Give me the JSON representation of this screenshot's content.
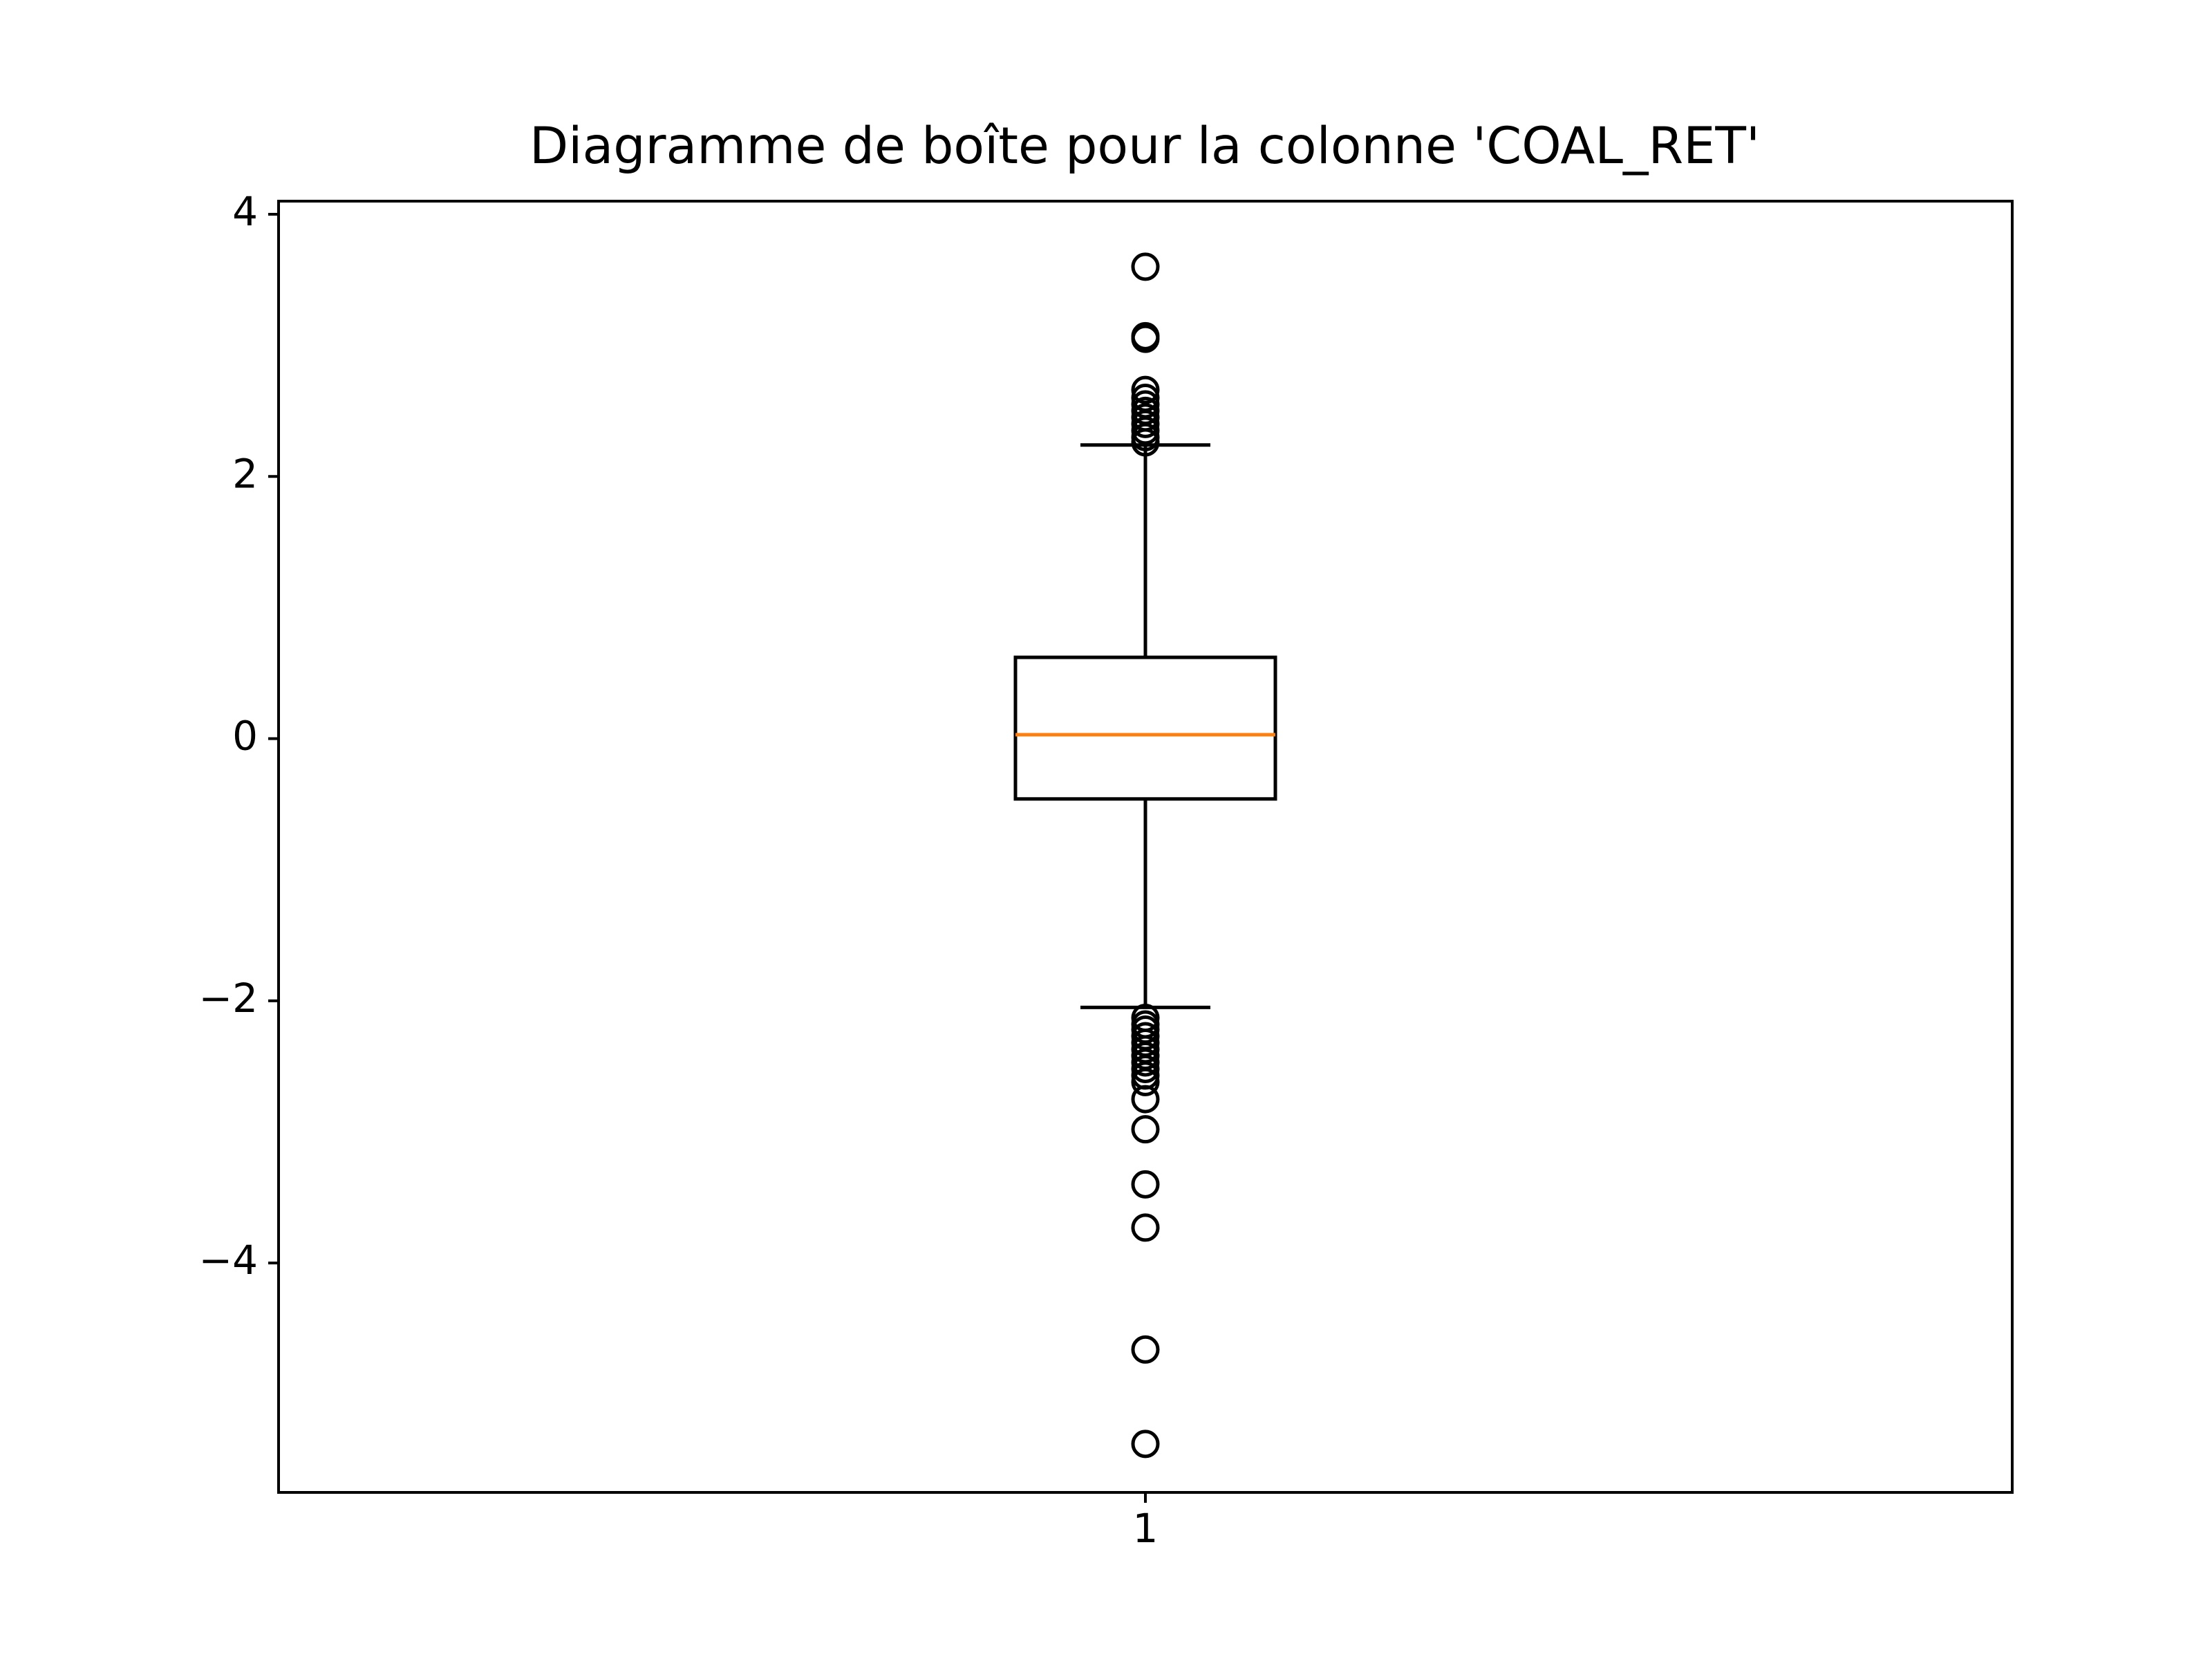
{
  "chart_data": {
    "type": "box",
    "title": "Diagramme de boîte pour la colonne 'COAL_RET'",
    "xlabel": "",
    "ylabel": "",
    "categories": [
      "1"
    ],
    "ylim": [
      -5.75,
      4.1
    ],
    "yticks": [
      {
        "value": 4,
        "label": "4"
      },
      {
        "value": 2,
        "label": "2"
      },
      {
        "value": 0,
        "label": "0"
      },
      {
        "value": -2,
        "label": "−2"
      },
      {
        "value": -4,
        "label": "−4"
      }
    ],
    "grid": false,
    "box": {
      "q1": -0.46,
      "median": 0.03,
      "q3": 0.62,
      "whisker_low": -2.05,
      "whisker_high": 2.24
    },
    "outliers": [
      3.6,
      3.07,
      3.05,
      2.66,
      2.6,
      2.55,
      2.5,
      2.45,
      2.4,
      2.35,
      2.3,
      2.26,
      -2.13,
      -2.18,
      -2.22,
      -2.27,
      -2.32,
      -2.37,
      -2.42,
      -2.47,
      -2.52,
      -2.57,
      -2.62,
      -2.75,
      -2.98,
      -3.4,
      -3.73,
      -4.66,
      -5.38
    ],
    "colors": {
      "median": "#ff7f0e",
      "box": "#000000",
      "axes": "#000000"
    }
  }
}
